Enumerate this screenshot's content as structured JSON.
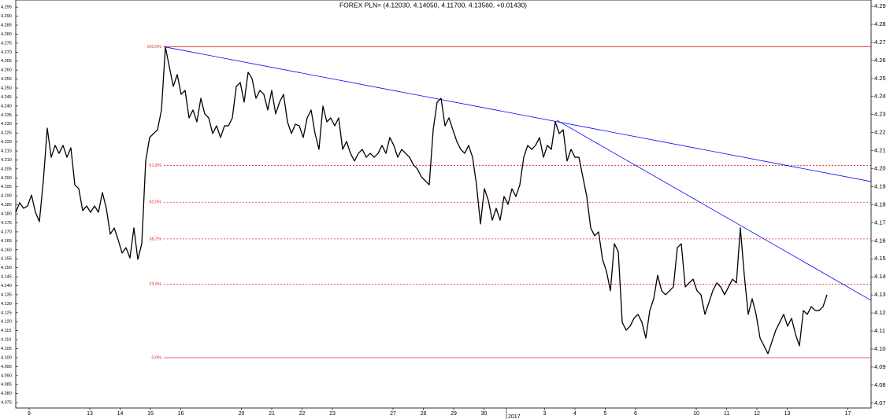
{
  "chart_data": {
    "type": "line",
    "title": "FOREX PLN= (4.12030, 4.14050, 4.11700, 4.13560, +0.01430)",
    "xlim": [
      0,
      217.2
    ],
    "xticks": [
      {
        "value": 3.4,
        "label": "9"
      },
      {
        "value": 18.8,
        "label": "13"
      },
      {
        "value": 26.5,
        "label": "14"
      },
      {
        "value": 34.2,
        "label": "15"
      },
      {
        "value": 41.9,
        "label": "16"
      },
      {
        "value": 57.3,
        "label": "20"
      },
      {
        "value": 65,
        "label": "21"
      },
      {
        "value": 72.7,
        "label": "22"
      },
      {
        "value": 80.4,
        "label": "23"
      },
      {
        "value": 95.8,
        "label": "27"
      },
      {
        "value": 103.5,
        "label": "28"
      },
      {
        "value": 111.2,
        "label": "29"
      },
      {
        "value": 118.9,
        "label": "30"
      },
      {
        "value": 134.3,
        "label": "3"
      },
      {
        "value": 142,
        "label": "4"
      },
      {
        "value": 149.7,
        "label": "5"
      },
      {
        "value": 157.4,
        "label": "6"
      },
      {
        "value": 172.8,
        "label": "10"
      },
      {
        "value": 180.5,
        "label": "11"
      },
      {
        "value": 188.2,
        "label": "12"
      },
      {
        "value": 195.9,
        "label": "13"
      },
      {
        "value": 211.3,
        "label": "17"
      }
    ],
    "year_ticks": [
      {
        "value": 124.6,
        "label": "2017"
      }
    ],
    "ylim": [
      4.072,
      4.299
    ],
    "yticks": [
      4.075,
      {
        "value": 4.08,
        "label": "4.080"
      },
      4.085,
      {
        "value": 4.09,
        "label": "4.090"
      },
      4.095,
      {
        "value": 4.1,
        "label": "4.100"
      },
      4.105,
      {
        "value": 4.11,
        "label": "4.110"
      },
      4.115,
      {
        "value": 4.12,
        "label": "4.120"
      },
      4.125,
      {
        "value": 4.13,
        "label": "4.130"
      },
      4.135,
      {
        "value": 4.14,
        "label": "4.140"
      },
      4.145,
      {
        "value": 4.15,
        "label": "4.150"
      },
      4.155,
      {
        "value": 4.16,
        "label": "4.160"
      },
      4.165,
      {
        "value": 4.17,
        "label": "4.170"
      },
      4.175,
      {
        "value": 4.18,
        "label": "4.180"
      },
      4.185,
      {
        "value": 4.19,
        "label": "4.190"
      },
      4.195,
      {
        "value": 4.2,
        "label": "4.200"
      },
      4.205,
      {
        "value": 4.21,
        "label": "4.210"
      },
      4.215,
      {
        "value": 4.22,
        "label": "4.220"
      },
      4.225,
      {
        "value": 4.23,
        "label": "4.230"
      },
      4.235,
      {
        "value": 4.24,
        "label": "4.240"
      },
      4.245,
      {
        "value": 4.25,
        "label": "4.250"
      },
      4.255,
      {
        "value": 4.26,
        "label": "4.260"
      },
      4.265,
      {
        "value": 4.27,
        "label": "4.270"
      },
      4.275,
      {
        "value": 4.28,
        "label": "4.280"
      },
      4.285,
      {
        "value": 4.29,
        "label": "4.290"
      },
      4.295
    ],
    "y2lim": [
      4.0673,
      4.2935
    ],
    "y2ticks": [
      4.07,
      4.08,
      4.09,
      {
        "value": 4.1,
        "label": "4.10"
      },
      4.11,
      4.12,
      4.13,
      4.14,
      4.15,
      4.16,
      4.17,
      4.18,
      4.19,
      {
        "value": 4.2,
        "label": "4.20"
      },
      4.21,
      4.22,
      4.23,
      4.24,
      4.25,
      4.26,
      4.27,
      4.28,
      4.29
    ],
    "series": [
      {
        "color": "#000000",
        "x": [
          0,
          1,
          2,
          3,
          4,
          5,
          6,
          7,
          8,
          9,
          10,
          11,
          12,
          13,
          14,
          15,
          16,
          17,
          18,
          19,
          20,
          21,
          22,
          23,
          24,
          25,
          26,
          27,
          28,
          29,
          30,
          31,
          32,
          33,
          34,
          35,
          36,
          37,
          38,
          39,
          40,
          41,
          42,
          43,
          44,
          45,
          46,
          47,
          48,
          49,
          50,
          51,
          52,
          53,
          54,
          55,
          56,
          57,
          58,
          59,
          60,
          61,
          62,
          63,
          64,
          65,
          66,
          67,
          68,
          69,
          70,
          71,
          72,
          73,
          74,
          75,
          76,
          77,
          78,
          79,
          80,
          81,
          82,
          83,
          84,
          85,
          86,
          87,
          88,
          89,
          90,
          91,
          92,
          93,
          94,
          95,
          96,
          97,
          98,
          99,
          100,
          101,
          102,
          103,
          104,
          105,
          106,
          107,
          108,
          109,
          110,
          111,
          112,
          113,
          114,
          115,
          116,
          117,
          118,
          119,
          120,
          121,
          122,
          123,
          124,
          125,
          126,
          127,
          128,
          129,
          130,
          131,
          132,
          133,
          134,
          135,
          136,
          137,
          138,
          139,
          140,
          141,
          142,
          143,
          144,
          145,
          146,
          147,
          148,
          149,
          150,
          151,
          152,
          153,
          154,
          155,
          156,
          157,
          158,
          159,
          160,
          161,
          162,
          163,
          164,
          165,
          166,
          167,
          168,
          169,
          170,
          171,
          172,
          173,
          174,
          175,
          176,
          177,
          178,
          179,
          180,
          181,
          182,
          183,
          184,
          185,
          186,
          187,
          188,
          189,
          190,
          191,
          192,
          193,
          194,
          195,
          196,
          197,
          198,
          199,
          200,
          201,
          202,
          203,
          204,
          205,
          206
        ],
        "values": [
          4.1809,
          4.1862,
          4.1831,
          4.1844,
          4.1905,
          4.1809,
          4.1757,
          4.1984,
          4.2277,
          4.2115,
          4.2181,
          4.2137,
          4.2181,
          4.2115,
          4.2168,
          4.1962,
          4.194,
          4.1818,
          4.1844,
          4.1809,
          4.1844,
          4.1809,
          4.1919,
          4.1831,
          4.1687,
          4.1722,
          4.1656,
          4.1582,
          4.1612,
          4.1555,
          4.1722,
          4.1547,
          4.1634,
          4.2094,
          4.2225,
          4.2247,
          4.2268,
          4.2378,
          4.2728,
          4.2618,
          4.2509,
          4.2575,
          4.2465,
          4.2487,
          4.2334,
          4.2378,
          4.2312,
          4.2443,
          4.2356,
          4.2334,
          4.2247,
          4.229,
          4.2225,
          4.229,
          4.229,
          4.2334,
          4.2509,
          4.2531,
          4.2422,
          4.2588,
          4.2553,
          4.2443,
          4.2487,
          4.2465,
          4.2378,
          4.2487,
          4.2356,
          4.2422,
          4.2465,
          4.2312,
          4.2247,
          4.2299,
          4.229,
          4.2225,
          4.2334,
          4.2378,
          4.2247,
          4.2159,
          4.24,
          4.2312,
          4.2334,
          4.229,
          4.2334,
          4.2159,
          4.2203,
          4.2137,
          4.2094,
          4.2137,
          4.2159,
          4.2115,
          4.2137,
          4.2115,
          4.2137,
          4.2181,
          4.2137,
          4.2225,
          4.2181,
          4.2115,
          4.2159,
          4.2137,
          4.2115,
          4.2072,
          4.205,
          4.2006,
          4.1984,
          4.1962,
          4.2268,
          4.2422,
          4.2443,
          4.229,
          4.2334,
          4.2268,
          4.2203,
          4.2159,
          4.2137,
          4.2181,
          4.2115,
          4.1962,
          4.1744,
          4.194,
          4.1875,
          4.1765,
          4.1831,
          4.1765,
          4.1897,
          4.1853,
          4.194,
          4.1897,
          4.1962,
          4.2115,
          4.2181,
          4.2159,
          4.2181,
          4.2225,
          4.2115,
          4.2181,
          4.2159,
          4.2312,
          4.2247,
          4.2268,
          4.2094,
          4.2159,
          4.2115,
          4.2115,
          4.2006,
          4.1897,
          4.1722,
          4.1678,
          4.17,
          4.1547,
          4.1481,
          4.1372,
          4.1634,
          4.159,
          4.1197,
          4.1153,
          4.1175,
          4.1219,
          4.1241,
          4.1197,
          4.1109,
          4.1262,
          4.1328,
          4.1459,
          4.1372,
          4.135,
          4.1372,
          4.1394,
          4.1612,
          4.1634,
          4.1394,
          4.1416,
          4.1437,
          4.1372,
          4.135,
          4.1241,
          4.1306,
          4.1372,
          4.1416,
          4.1394,
          4.135,
          4.1394,
          4.1437,
          4.1416,
          4.1722,
          4.1459,
          4.1241,
          4.1328,
          4.1241,
          4.1109,
          4.1066,
          4.1022,
          4.1087,
          4.1153,
          4.1197,
          4.1241,
          4.1175,
          4.1219,
          4.1131,
          4.1066,
          4.1262,
          4.1241,
          4.1284,
          4.1262,
          4.1262,
          4.1284,
          4.135
        ]
      }
    ],
    "trendlines": [
      {
        "color": "#0000ff",
        "x": [
          37.6,
          217.2
        ],
        "values": [
          4.273,
          4.198
        ]
      },
      {
        "color": "#0000ff",
        "x": [
          137.4,
          217.2
        ],
        "values": [
          4.2321,
          4.1319
        ]
      }
    ],
    "fib_color": "#e03030",
    "fib_start": 37.6,
    "fib_levels": [
      {
        "label": "100.0%",
        "price": 4.273,
        "dashed": false
      },
      {
        "label": "61.8%",
        "price": 4.2069,
        "dashed": true
      },
      {
        "label": "50.0%",
        "price": 4.1865,
        "dashed": true
      },
      {
        "label": "38.2%",
        "price": 4.1661,
        "dashed": true
      },
      {
        "label": "23.6%",
        "price": 4.1408,
        "dashed": true
      },
      {
        "label": "0.0%",
        "price": 4.1,
        "dashed": false
      }
    ]
  }
}
